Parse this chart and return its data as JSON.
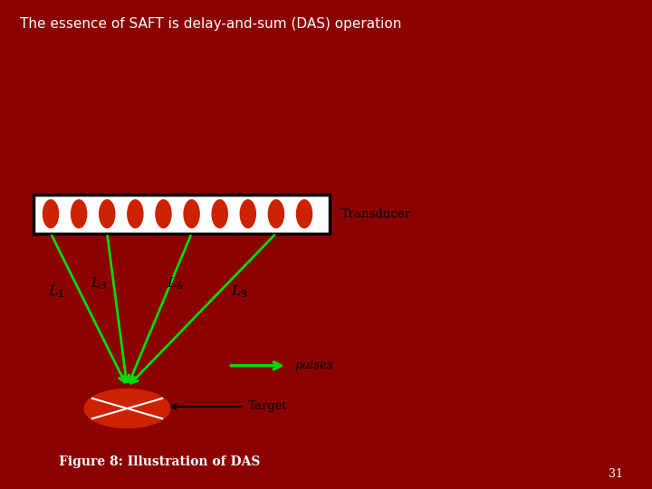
{
  "bg_color": "#8B0000",
  "panel_bg": "#FFFFFF",
  "title": "The essence of SAFT is delay-and-sum (DAS) operation",
  "title_color": "#FFFFFF",
  "title_fontsize": 11,
  "figure_caption": "Figure 8: Illustration of DAS",
  "caption_color": "#FFFFFF",
  "caption_fontsize": 10,
  "page_number": "31",
  "transducer_label": "Transducer",
  "pulses_label": "pulses",
  "target_label": "Target",
  "dot_color": "#CC2200",
  "line_color": "#00DD00",
  "line_labels": [
    "L$_1$",
    "L$_3$",
    "L$_6$",
    "L$_9$"
  ],
  "target_ellipse_color": "#CC2200"
}
